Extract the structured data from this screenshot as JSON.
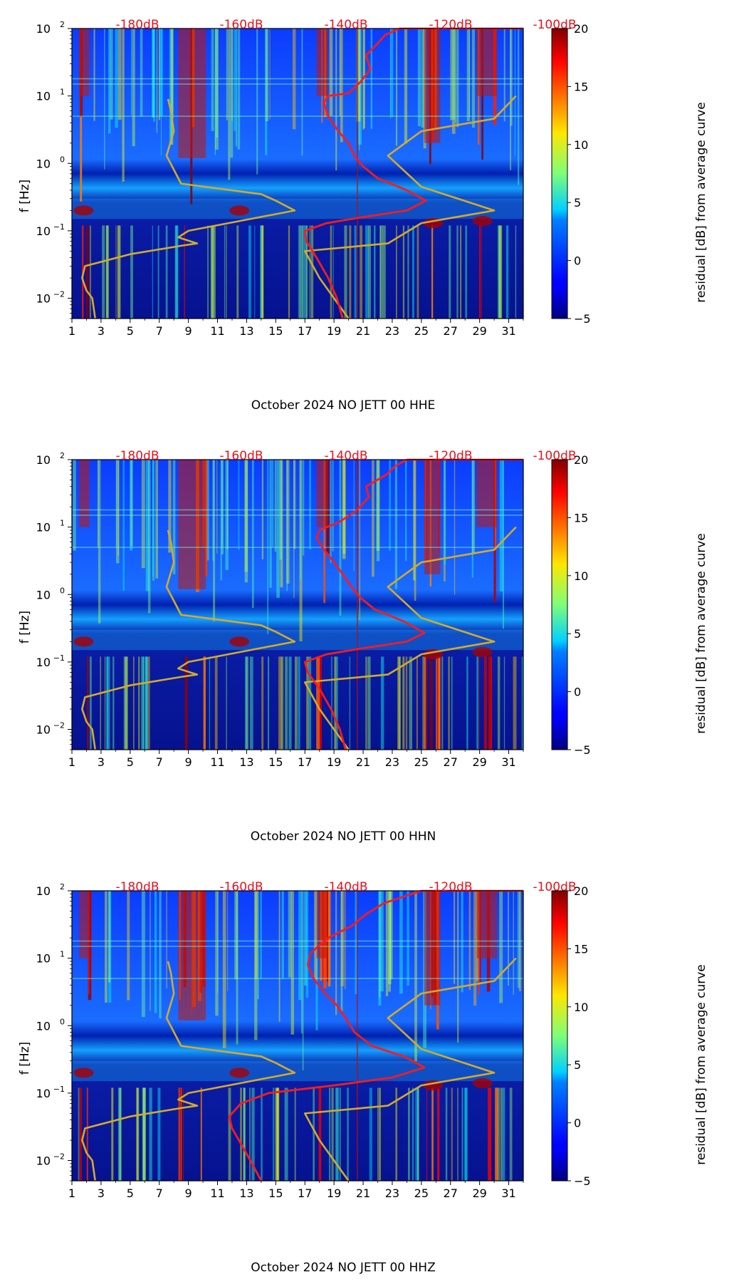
{
  "figure": {
    "colorbar": {
      "label": "residual [dB] from average curve",
      "ticks": [
        20,
        15,
        10,
        5,
        0,
        -5
      ],
      "tick_labels": [
        "20",
        "15",
        "10",
        "5",
        "0",
        "−5"
      ],
      "range": [
        -5,
        20
      ],
      "colormap": "jet"
    },
    "top_db_labels": [
      "-180dB",
      "-160dB",
      "-140dB",
      "-120dB",
      "-100dB"
    ],
    "colors": {
      "psd_curve": "#ff1a1a",
      "reference_curve": "#d4aa2a",
      "db_label": "#e8101a",
      "vline": "#b01010"
    }
  },
  "chart_data": [
    {
      "type": "heatmap",
      "xlabel": "October 2024 NO JETT 00 HHE",
      "ylabel": "f [Hz]",
      "xlim": [
        1,
        32
      ],
      "ylim": [
        0.005,
        100
      ],
      "yscale": "log",
      "x_ticks": [
        "1",
        "3",
        "5",
        "7",
        "9",
        "11",
        "13",
        "15",
        "17",
        "19",
        "21",
        "23",
        "25",
        "27",
        "29",
        "31"
      ],
      "y_ticks": [
        {
          "base": "10",
          "exp": "2"
        },
        {
          "base": "10",
          "exp": "1"
        },
        {
          "base": "10",
          "exp": "0"
        },
        {
          "base": "10",
          "exp": "−1"
        },
        {
          "base": "10",
          "exp": "−2"
        }
      ],
      "top_db_scale": [
        "-180dB",
        "-160dB",
        "-140dB",
        "-120dB",
        "-100dB"
      ],
      "reference_curve": [
        [
          2.6,
          0.005
        ],
        [
          2.4,
          0.01
        ],
        [
          2,
          0.013
        ],
        [
          1.7,
          0.02
        ],
        [
          1.9,
          0.03
        ],
        [
          5,
          0.045
        ],
        [
          8.5,
          0.06
        ],
        [
          9.6,
          0.065
        ],
        [
          8.3,
          0.08
        ],
        [
          9,
          0.1
        ],
        [
          16.3,
          0.2
        ],
        [
          15,
          0.28
        ],
        [
          14,
          0.35
        ],
        [
          8.5,
          0.5
        ],
        [
          7.5,
          1.3
        ],
        [
          8,
          3
        ],
        [
          7.8,
          6
        ],
        [
          7.6,
          9
        ],
        [
          20,
          0.005
        ],
        [
          18,
          0.02
        ],
        [
          17,
          0.05
        ],
        [
          22.7,
          0.065
        ],
        [
          25,
          0.13
        ],
        [
          30,
          0.2
        ],
        [
          25,
          0.45
        ],
        [
          22.7,
          1.3
        ],
        [
          25,
          3
        ],
        [
          30,
          4.6
        ],
        [
          31.5,
          10
        ]
      ],
      "psd_curve": [
        [
          19.6,
          0.005
        ],
        [
          19.2,
          0.01
        ],
        [
          18.6,
          0.02
        ],
        [
          17.8,
          0.04
        ],
        [
          17.1,
          0.07
        ],
        [
          17,
          0.1
        ],
        [
          18.5,
          0.13
        ],
        [
          21,
          0.16
        ],
        [
          24,
          0.2
        ],
        [
          25.3,
          0.28
        ],
        [
          24,
          0.4
        ],
        [
          22,
          0.6
        ],
        [
          21,
          0.9
        ],
        [
          20.4,
          1.3
        ],
        [
          20,
          2
        ],
        [
          19.3,
          3
        ],
        [
          18.6,
          5
        ],
        [
          18.3,
          8
        ],
        [
          18.6,
          10
        ],
        [
          20,
          11
        ],
        [
          20.8,
          16
        ],
        [
          21.5,
          25
        ],
        [
          21.2,
          40
        ],
        [
          22,
          60
        ],
        [
          22.5,
          80
        ],
        [
          23.5,
          100
        ]
      ],
      "time_marker_day": 20.6
    },
    {
      "type": "heatmap",
      "xlabel": "October 2024 NO JETT 00 HHN",
      "ylabel": "f [Hz]",
      "xlim": [
        1,
        32
      ],
      "ylim": [
        0.005,
        100
      ],
      "yscale": "log",
      "x_ticks": [
        "1",
        "3",
        "5",
        "7",
        "9",
        "11",
        "13",
        "15",
        "17",
        "19",
        "21",
        "23",
        "25",
        "27",
        "29",
        "31"
      ],
      "y_ticks": [
        {
          "base": "10",
          "exp": "2"
        },
        {
          "base": "10",
          "exp": "1"
        },
        {
          "base": "10",
          "exp": "0"
        },
        {
          "base": "10",
          "exp": "−1"
        },
        {
          "base": "10",
          "exp": "−2"
        }
      ],
      "top_db_scale": [
        "-180dB",
        "-160dB",
        "-140dB",
        "-120dB",
        "-100dB"
      ],
      "reference_curve": [
        [
          2.6,
          0.005
        ],
        [
          2.4,
          0.01
        ],
        [
          2,
          0.013
        ],
        [
          1.7,
          0.02
        ],
        [
          1.9,
          0.03
        ],
        [
          5,
          0.045
        ],
        [
          8.5,
          0.06
        ],
        [
          9.6,
          0.065
        ],
        [
          8.3,
          0.08
        ],
        [
          9,
          0.1
        ],
        [
          16.3,
          0.2
        ],
        [
          15,
          0.28
        ],
        [
          14,
          0.35
        ],
        [
          8.5,
          0.5
        ],
        [
          7.5,
          1.3
        ],
        [
          8,
          3
        ],
        [
          7.8,
          6
        ],
        [
          7.6,
          9
        ],
        [
          20,
          0.005
        ],
        [
          18,
          0.02
        ],
        [
          17,
          0.05
        ],
        [
          22.7,
          0.065
        ],
        [
          25,
          0.13
        ],
        [
          30,
          0.2
        ],
        [
          25,
          0.45
        ],
        [
          22.7,
          1.3
        ],
        [
          25,
          3
        ],
        [
          30,
          4.6
        ],
        [
          31.5,
          10
        ]
      ],
      "psd_curve": [
        [
          19.8,
          0.005
        ],
        [
          19.4,
          0.01
        ],
        [
          18.8,
          0.02
        ],
        [
          18,
          0.04
        ],
        [
          17.2,
          0.07
        ],
        [
          17,
          0.1
        ],
        [
          18.5,
          0.13
        ],
        [
          21,
          0.16
        ],
        [
          24,
          0.2
        ],
        [
          25.2,
          0.27
        ],
        [
          23.8,
          0.4
        ],
        [
          21.8,
          0.6
        ],
        [
          20.8,
          0.9
        ],
        [
          20.2,
          1.3
        ],
        [
          19.6,
          2
        ],
        [
          19,
          3
        ],
        [
          18.2,
          5
        ],
        [
          17.8,
          7
        ],
        [
          18,
          9
        ],
        [
          19.4,
          12
        ],
        [
          20.6,
          18
        ],
        [
          21.4,
          28
        ],
        [
          21.2,
          40
        ],
        [
          22.6,
          60
        ],
        [
          23.2,
          80
        ],
        [
          24,
          100
        ]
      ],
      "time_marker_day": 20.6
    },
    {
      "type": "heatmap",
      "xlabel": "October 2024 NO JETT 00 HHZ",
      "ylabel": "f [Hz]",
      "xlim": [
        1,
        32
      ],
      "ylim": [
        0.005,
        100
      ],
      "yscale": "log",
      "x_ticks": [
        "1",
        "3",
        "5",
        "7",
        "9",
        "11",
        "13",
        "15",
        "17",
        "19",
        "21",
        "23",
        "25",
        "27",
        "29",
        "31"
      ],
      "y_ticks": [
        {
          "base": "10",
          "exp": "2"
        },
        {
          "base": "10",
          "exp": "1"
        },
        {
          "base": "10",
          "exp": "0"
        },
        {
          "base": "10",
          "exp": "−1"
        },
        {
          "base": "10",
          "exp": "−2"
        }
      ],
      "top_db_scale": [
        "-180dB",
        "-160dB",
        "-140dB",
        "-120dB",
        "-100dB"
      ],
      "reference_curve": [
        [
          2.6,
          0.005
        ],
        [
          2.4,
          0.01
        ],
        [
          2,
          0.013
        ],
        [
          1.7,
          0.02
        ],
        [
          1.9,
          0.03
        ],
        [
          5,
          0.045
        ],
        [
          8.5,
          0.06
        ],
        [
          9.6,
          0.065
        ],
        [
          8.3,
          0.08
        ],
        [
          9,
          0.1
        ],
        [
          16.3,
          0.2
        ],
        [
          15,
          0.28
        ],
        [
          14,
          0.35
        ],
        [
          8.5,
          0.5
        ],
        [
          7.5,
          1.3
        ],
        [
          8,
          3
        ],
        [
          7.8,
          6
        ],
        [
          7.6,
          9
        ],
        [
          20,
          0.005
        ],
        [
          18,
          0.02
        ],
        [
          17,
          0.05
        ],
        [
          22.7,
          0.065
        ],
        [
          25,
          0.13
        ],
        [
          30,
          0.2
        ],
        [
          25,
          0.45
        ],
        [
          22.7,
          1.3
        ],
        [
          25,
          3
        ],
        [
          30,
          4.6
        ],
        [
          31.5,
          10
        ]
      ],
      "psd_curve": [
        [
          14,
          0.005
        ],
        [
          13.5,
          0.008
        ],
        [
          12.8,
          0.015
        ],
        [
          12,
          0.03
        ],
        [
          11.8,
          0.045
        ],
        [
          12.6,
          0.07
        ],
        [
          14.5,
          0.1
        ],
        [
          19,
          0.13
        ],
        [
          23,
          0.17
        ],
        [
          25.2,
          0.24
        ],
        [
          23.8,
          0.35
        ],
        [
          21.6,
          0.5
        ],
        [
          20.4,
          0.8
        ],
        [
          19.8,
          1.3
        ],
        [
          19.2,
          2
        ],
        [
          18.4,
          3
        ],
        [
          17.6,
          5
        ],
        [
          17.2,
          8
        ],
        [
          17.4,
          12
        ],
        [
          18.6,
          20
        ],
        [
          20.2,
          30
        ],
        [
          21.2,
          45
        ],
        [
          22.4,
          65
        ],
        [
          24,
          85
        ],
        [
          25,
          100
        ]
      ],
      "time_marker_day": 20.6
    }
  ]
}
